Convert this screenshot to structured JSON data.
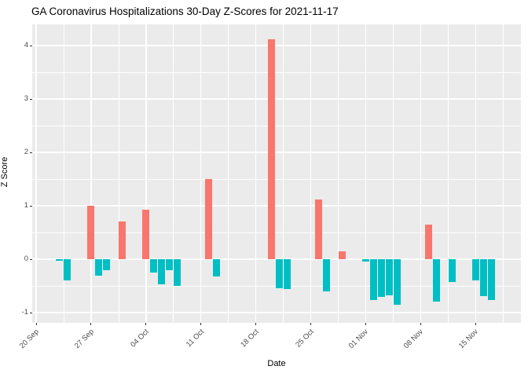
{
  "title": "GA Coronavirus Hospitalizations 30-Day Z-Scores for 2021-11-17",
  "chart_data": {
    "type": "bar",
    "title": "GA Coronavirus Hospitalizations 30-Day Z-Scores for 2021-11-17",
    "xlabel": "Date",
    "ylabel": "Z Score",
    "legend_position": "none",
    "grid": "major-and-minor, white on gray panel",
    "panel_bg": "#EBEBEB",
    "grid_color": "#FFFFFF",
    "positive_color": "#F8766D",
    "negative_color": "#00BFC4",
    "ylim": [
      -1.19,
      4.4
    ],
    "yticks": [
      -1,
      0,
      1,
      2,
      3,
      4
    ],
    "ytick_labels": [
      "-1",
      "0",
      "1",
      "2",
      "3",
      "4"
    ],
    "yminor": [
      -0.5,
      0.5,
      1.5,
      2.5,
      3.5
    ],
    "xticks": [
      {
        "label": "20 Sep",
        "date": "2021-09-20"
      },
      {
        "label": "27 Sep",
        "date": "2021-09-27"
      },
      {
        "label": "04 Oct",
        "date": "2021-10-04"
      },
      {
        "label": "11 Oct",
        "date": "2021-10-11"
      },
      {
        "label": "18 Oct",
        "date": "2021-10-18"
      },
      {
        "label": "25 Oct",
        "date": "2021-10-25"
      },
      {
        "label": "01 Nov",
        "date": "2021-11-01"
      },
      {
        "label": "08 Nov",
        "date": "2021-11-08"
      },
      {
        "label": "15 Nov",
        "date": "2021-11-15"
      }
    ],
    "x": [
      "2021-09-23",
      "2021-09-24",
      "2021-09-27",
      "2021-09-28",
      "2021-09-29",
      "2021-10-01",
      "2021-10-04",
      "2021-10-05",
      "2021-10-06",
      "2021-10-07",
      "2021-10-08",
      "2021-10-12",
      "2021-10-13",
      "2021-10-20",
      "2021-10-21",
      "2021-10-22",
      "2021-10-26",
      "2021-10-27",
      "2021-10-29",
      "2021-11-01",
      "2021-11-02",
      "2021-11-03",
      "2021-11-04",
      "2021-11-05",
      "2021-11-09",
      "2021-11-10",
      "2021-11-12",
      "2021-11-15",
      "2021-11-16",
      "2021-11-17"
    ],
    "values": [
      -0.03,
      -0.4,
      1.0,
      -0.31,
      -0.2,
      0.7,
      0.93,
      -0.25,
      -0.47,
      -0.2,
      -0.5,
      1.5,
      -0.33,
      4.12,
      -0.55,
      -0.56,
      1.12,
      -0.6,
      0.15,
      -0.04,
      -0.77,
      -0.7,
      -0.68,
      -0.86,
      0.65,
      -0.8,
      -0.43,
      -0.4,
      -0.69,
      -0.77
    ]
  }
}
